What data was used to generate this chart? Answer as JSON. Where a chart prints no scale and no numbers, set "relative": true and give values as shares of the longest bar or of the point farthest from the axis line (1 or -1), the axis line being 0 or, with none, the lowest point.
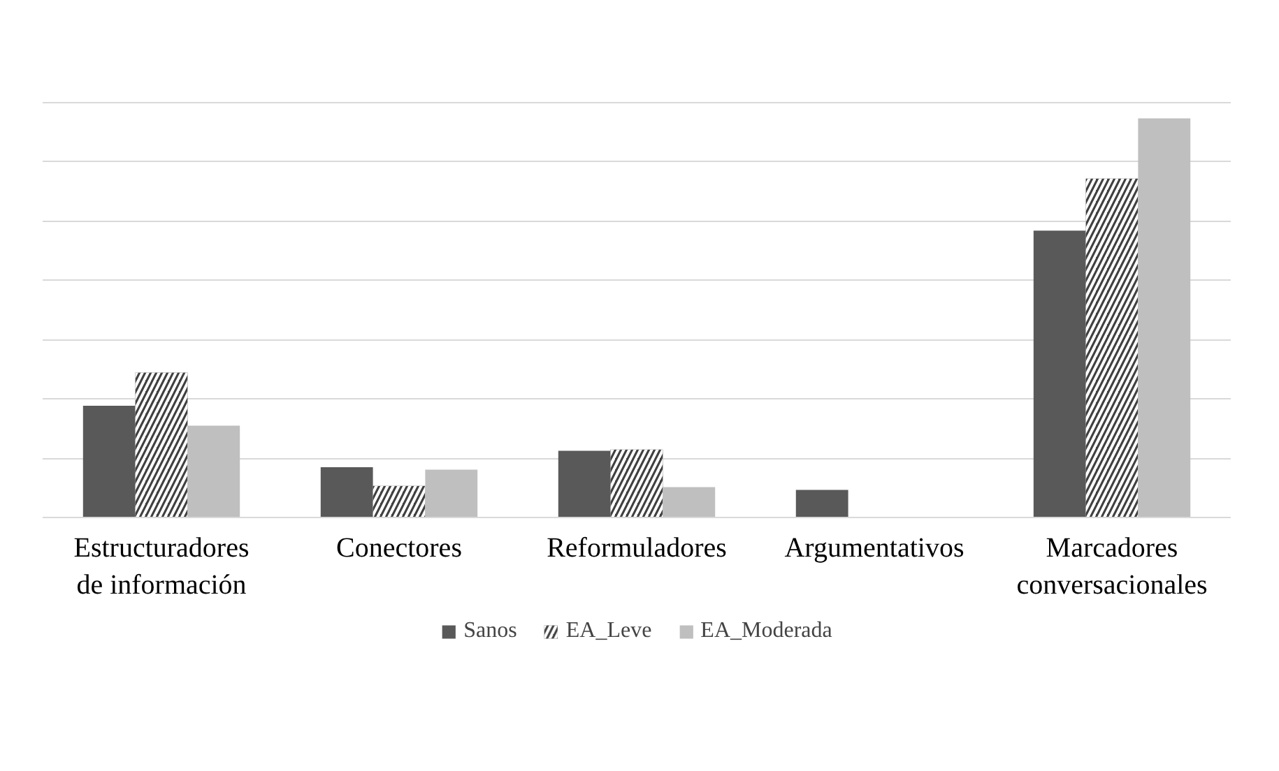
{
  "chart_data": {
    "type": "bar",
    "relative": true,
    "grid": "y",
    "legend": "bottom",
    "categories": [
      "Estructuradores\nde información",
      "Conectores",
      "Reformuladores",
      "Argumentativos",
      "Marcadores\nconversacionales"
    ],
    "series": [
      {
        "name": "Sanos",
        "color": "#595959",
        "values": [
          0.28,
          0.126,
          0.167,
          0.069,
          0.719
        ]
      },
      {
        "name": "EA_Leve",
        "color": "#404040",
        "values": [
          0.363,
          0.079,
          0.17,
          0,
          0.849
        ]
      },
      {
        "name": "EA_Moderada",
        "color": "#bfbfbf",
        "values": [
          0.23,
          0.12,
          0.076,
          0,
          1
        ]
      }
    ]
  }
}
